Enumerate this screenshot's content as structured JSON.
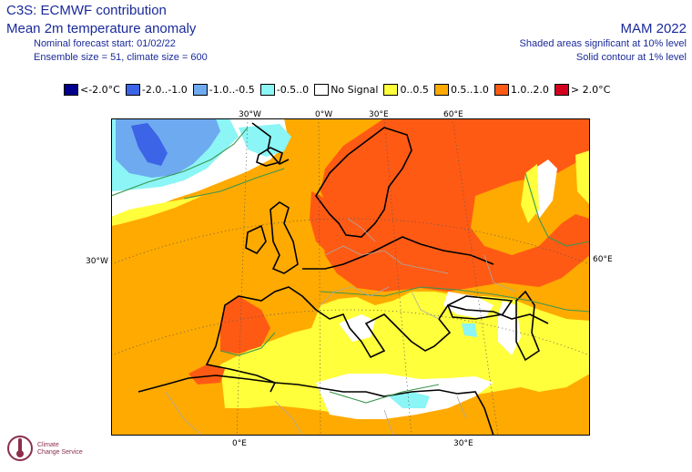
{
  "header": {
    "product": "C3S: ECMWF contribution",
    "variable": "Mean 2m temperature anomaly",
    "forecast_start": "Nominal forecast start: 01/02/22",
    "ensemble": "Ensemble size = 51, climate size = 600",
    "season": "MAM 2022",
    "shading_note": "Shaded areas significant at 10% level",
    "contour_note": "Solid contour at 1% level"
  },
  "legend": [
    {
      "label": "<-2.0°C",
      "color": "#00008c"
    },
    {
      "label": "-2.0..-1.0",
      "color": "#3c64e6"
    },
    {
      "label": "-1.0..-0.5",
      "color": "#6eaaf0"
    },
    {
      "label": "-0.5..0",
      "color": "#8cf5f5"
    },
    {
      "label": "No Signal",
      "color": "#ffffff"
    },
    {
      "label": "0..0.5",
      "color": "#ffff3c"
    },
    {
      "label": "0.5..1.0",
      "color": "#ffaa00"
    },
    {
      "label": "1.0..2.0",
      "color": "#ff5a14"
    },
    {
      "label": "> 2.0°C",
      "color": "#d2001e"
    }
  ],
  "grid_labels": {
    "top": [
      "30°W",
      "0°W",
      "30°E",
      "60°E"
    ],
    "bottom": [
      "0°E",
      "30°E"
    ],
    "left": "30°W",
    "right": "60°E"
  },
  "logo": {
    "line1": "Climate",
    "line2": "Change Service"
  }
}
